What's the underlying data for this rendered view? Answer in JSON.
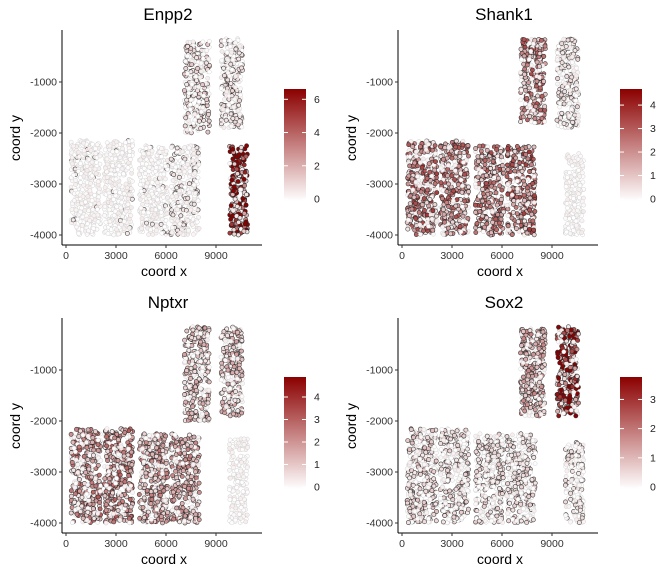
{
  "chart_data": [
    {
      "type": "scatter",
      "title": "Enpp2",
      "xlabel": "coord x",
      "ylabel": "coord y",
      "xlim": [
        0,
        12000
      ],
      "ylim": [
        -4200,
        0
      ],
      "x_ticks": [
        "0",
        "3000",
        "6000",
        "9000"
      ],
      "y_ticks": [
        "-1000",
        "-2000",
        "-3000",
        "-4000"
      ],
      "color_scale": {
        "low": "#ffffff",
        "high": "#8b0000",
        "min": 0,
        "max": 6.5
      },
      "legend_ticks": [
        "6",
        "4",
        "2",
        "0"
      ],
      "regions": [
        {
          "x": [
            7100,
            8600
          ],
          "y": [
            -2000,
            -200
          ],
          "level": 0.8
        },
        {
          "x": [
            9300,
            10600
          ],
          "y": [
            -1900,
            -150
          ],
          "level": 0.6
        },
        {
          "x": [
            9800,
            10900
          ],
          "y": [
            -4000,
            -2250
          ],
          "level": 5.8
        },
        {
          "x": [
            300,
            2100
          ],
          "y": [
            -4000,
            -2150
          ],
          "level": 0.3
        },
        {
          "x": [
            2300,
            4000
          ],
          "y": [
            -4000,
            -2150
          ],
          "level": 0.3
        },
        {
          "x": [
            4400,
            6100
          ],
          "y": [
            -4000,
            -2250
          ],
          "level": 0.3
        },
        {
          "x": [
            6300,
            8000
          ],
          "y": [
            -4000,
            -2250
          ],
          "level": 0.4
        }
      ]
    },
    {
      "type": "scatter",
      "title": "Shank1",
      "xlabel": "coord x",
      "ylabel": "coord y",
      "xlim": [
        0,
        12000
      ],
      "ylim": [
        -4200,
        0
      ],
      "x_ticks": [
        "0",
        "3000",
        "6000",
        "9000"
      ],
      "y_ticks": [
        "-1000",
        "-2000",
        "-3000",
        "-4000"
      ],
      "color_scale": {
        "low": "#ffffff",
        "high": "#8b0000",
        "min": 0,
        "max": 4.6
      },
      "legend_ticks": [
        "4",
        "3",
        "2",
        "1",
        "0"
      ],
      "regions": [
        {
          "x": [
            7100,
            8600
          ],
          "y": [
            -1800,
            -150
          ],
          "level": 1.8
        },
        {
          "x": [
            9300,
            10600
          ],
          "y": [
            -1900,
            -150
          ],
          "level": 0.4
        },
        {
          "x": [
            9800,
            10900
          ],
          "y": [
            -4000,
            -2400
          ],
          "level": 0.2
        },
        {
          "x": [
            300,
            2100
          ],
          "y": [
            -4000,
            -2150
          ],
          "level": 2.0
        },
        {
          "x": [
            2300,
            4000
          ],
          "y": [
            -4000,
            -2150
          ],
          "level": 1.8
        },
        {
          "x": [
            4400,
            6100
          ],
          "y": [
            -4000,
            -2250
          ],
          "level": 1.8
        },
        {
          "x": [
            6300,
            8000
          ],
          "y": [
            -4000,
            -2250
          ],
          "level": 2.0
        }
      ]
    },
    {
      "type": "scatter",
      "title": "Nptxr",
      "xlabel": "coord x",
      "ylabel": "coord y",
      "xlim": [
        0,
        12000
      ],
      "ylim": [
        -4200,
        0
      ],
      "x_ticks": [
        "0",
        "3000",
        "6000",
        "9000"
      ],
      "y_ticks": [
        "-1000",
        "-2000",
        "-3000",
        "-4000"
      ],
      "color_scale": {
        "low": "#ffffff",
        "high": "#8b0000",
        "min": 0,
        "max": 4.8
      },
      "legend_ticks": [
        "4",
        "3",
        "2",
        "1",
        "0"
      ],
      "regions": [
        {
          "x": [
            7100,
            8600
          ],
          "y": [
            -2000,
            -150
          ],
          "level": 1.0
        },
        {
          "x": [
            9300,
            10600
          ],
          "y": [
            -1900,
            -150
          ],
          "level": 1.0
        },
        {
          "x": [
            9800,
            10900
          ],
          "y": [
            -4000,
            -2350
          ],
          "level": 0.2
        },
        {
          "x": [
            300,
            2100
          ],
          "y": [
            -4000,
            -2150
          ],
          "level": 1.7
        },
        {
          "x": [
            2300,
            4000
          ],
          "y": [
            -4000,
            -2150
          ],
          "level": 1.7
        },
        {
          "x": [
            4400,
            6100
          ],
          "y": [
            -4000,
            -2250
          ],
          "level": 1.4
        },
        {
          "x": [
            6300,
            8000
          ],
          "y": [
            -4000,
            -2250
          ],
          "level": 1.3
        }
      ]
    },
    {
      "type": "scatter",
      "title": "Sox2",
      "xlabel": "coord x",
      "ylabel": "coord y",
      "xlim": [
        0,
        12000
      ],
      "ylim": [
        -4200,
        0
      ],
      "x_ticks": [
        "0",
        "3000",
        "6000",
        "9000"
      ],
      "y_ticks": [
        "-1000",
        "-2000",
        "-3000",
        "-4000"
      ],
      "color_scale": {
        "low": "#ffffff",
        "high": "#8b0000",
        "min": 0,
        "max": 3.7
      },
      "legend_ticks": [
        "3",
        "2",
        "1",
        "0"
      ],
      "regions": [
        {
          "x": [
            7100,
            8600
          ],
          "y": [
            -1900,
            -150
          ],
          "level": 1.0
        },
        {
          "x": [
            9300,
            10600
          ],
          "y": [
            -1900,
            -150
          ],
          "level": 2.8
        },
        {
          "x": [
            9800,
            10900
          ],
          "y": [
            -4000,
            -2400
          ],
          "level": 0.3
        },
        {
          "x": [
            300,
            2100
          ],
          "y": [
            -4000,
            -2150
          ],
          "level": 0.5
        },
        {
          "x": [
            2300,
            4000
          ],
          "y": [
            -4000,
            -2150
          ],
          "level": 0.4
        },
        {
          "x": [
            4400,
            6100
          ],
          "y": [
            -4000,
            -2250
          ],
          "level": 0.4
        },
        {
          "x": [
            6300,
            8000
          ],
          "y": [
            -4000,
            -2250
          ],
          "level": 0.4
        }
      ]
    }
  ]
}
